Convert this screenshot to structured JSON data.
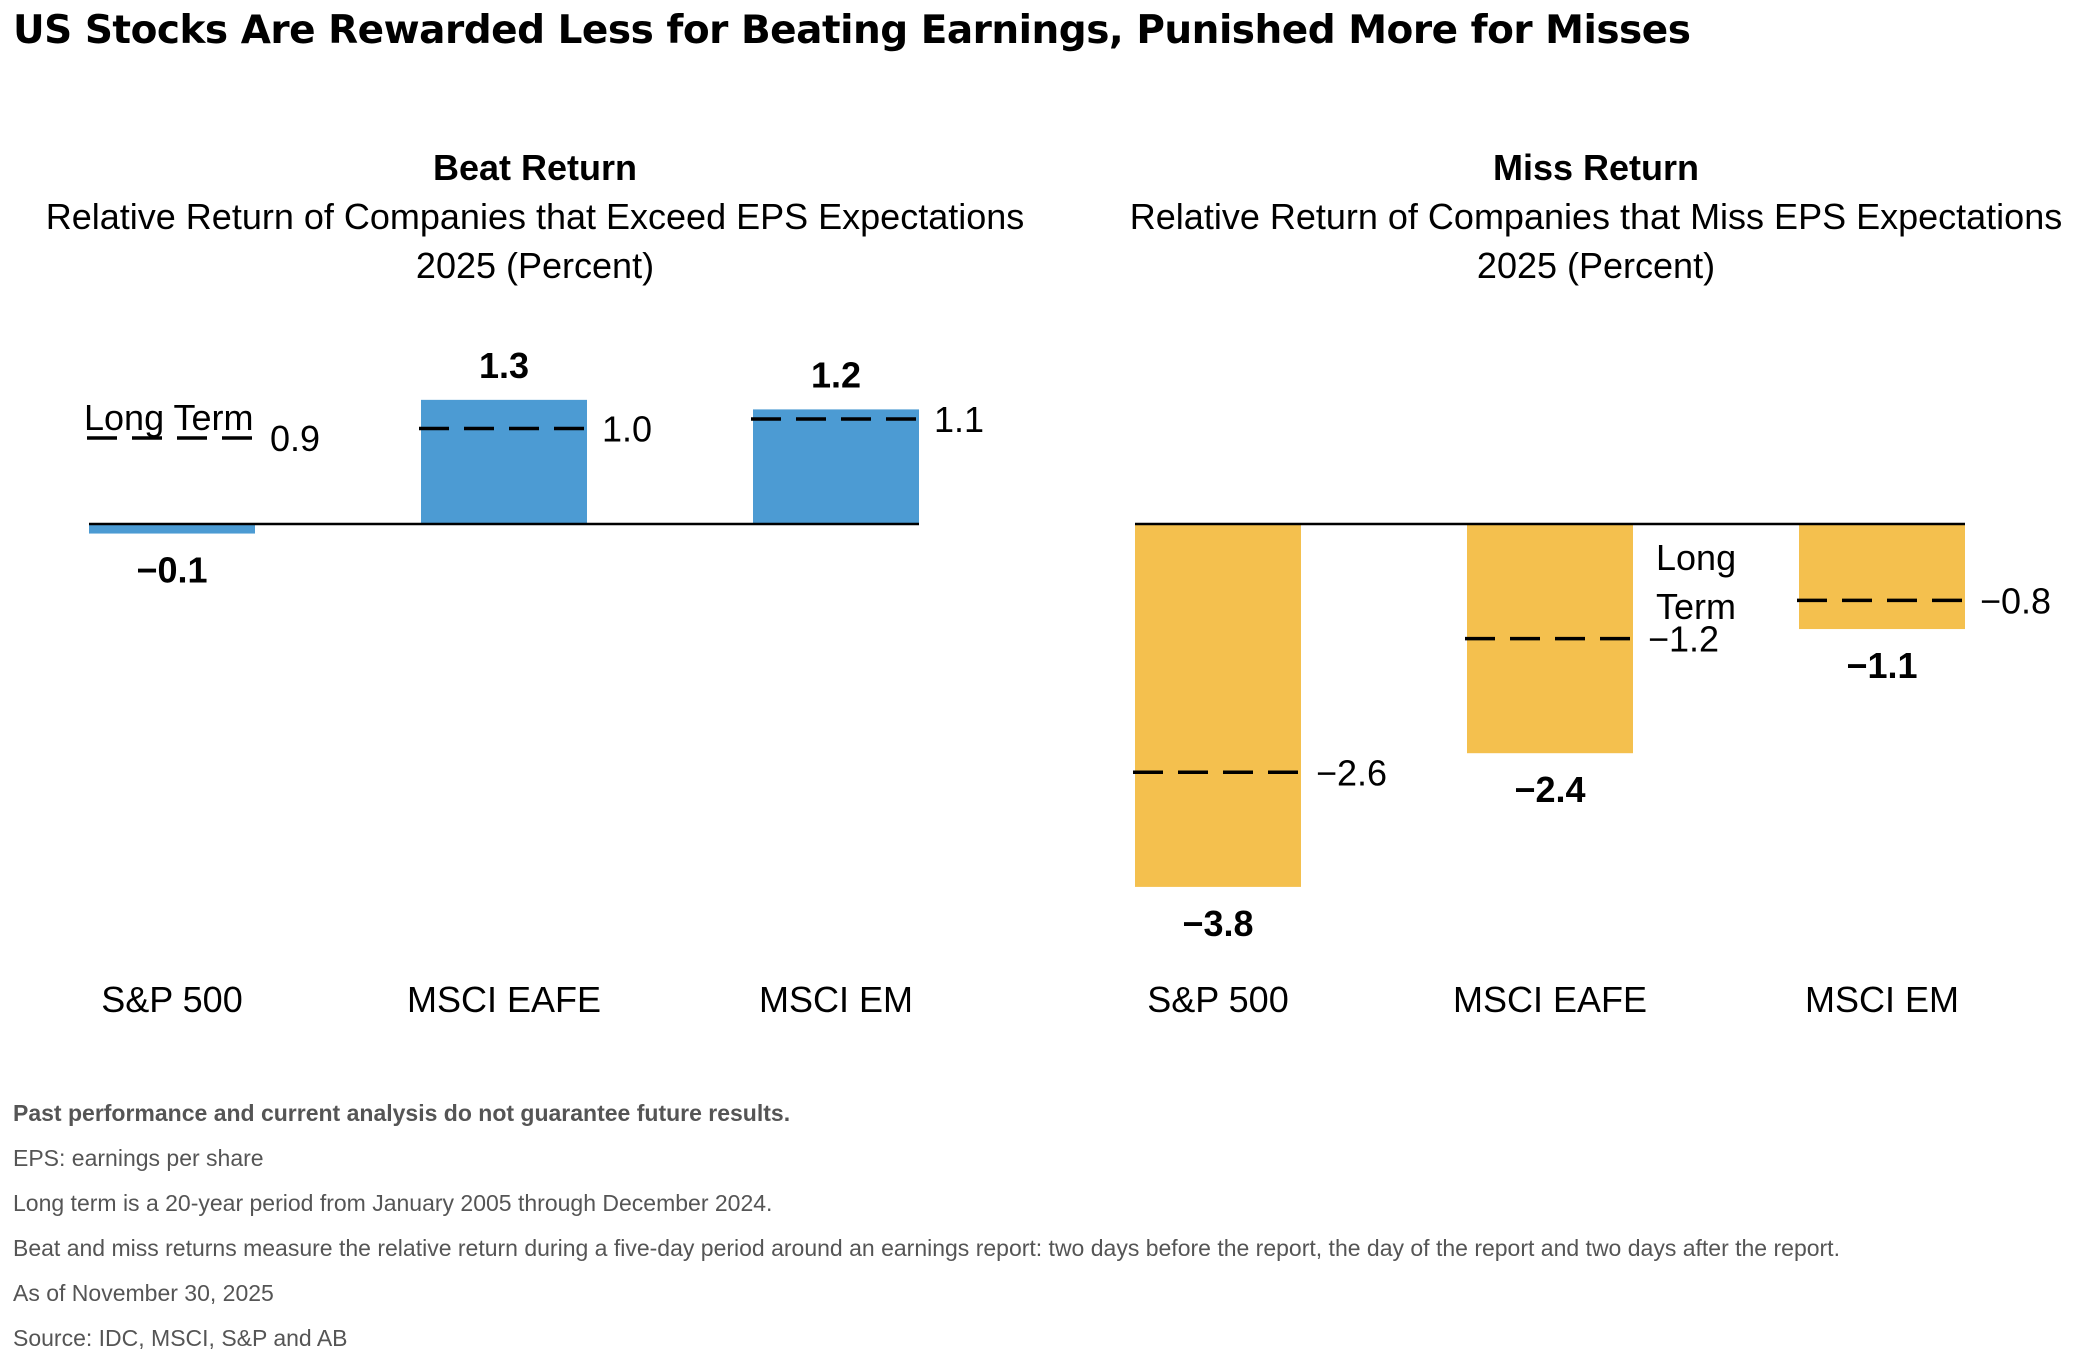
{
  "title": "US Stocks Are Rewarded Less for Beating Earnings, Punished More for Misses",
  "colors": {
    "beat": "#4C9BD3",
    "miss": "#F4C04E",
    "axis": "#000000",
    "note_text": "#555555"
  },
  "chart_data": [
    {
      "type": "bar",
      "title": "Beat Return",
      "subtitle": "Relative Return of Companies that Exceed EPS Expectations",
      "subtitle2": "2025 (Percent)",
      "categories": [
        "S&P 500",
        "MSCI EAFE",
        "MSCI EM"
      ],
      "values": [
        -0.1,
        1.3,
        1.2
      ],
      "value_labels": [
        "−0.1",
        "1.3",
        "1.2"
      ],
      "long_term": [
        0.9,
        1.0,
        1.1
      ],
      "long_term_labels": [
        "0.9",
        "1.0",
        "1.1"
      ],
      "long_term_legend": [
        "Long Term"
      ],
      "color": "#4C9BD3"
    },
    {
      "type": "bar",
      "title": "Miss Return",
      "subtitle": "Relative Return of Companies that Miss EPS Expectations",
      "subtitle2": "2025 (Percent)",
      "categories": [
        "S&P 500",
        "MSCI EAFE",
        "MSCI EM"
      ],
      "values": [
        -3.8,
        -2.4,
        -1.1
      ],
      "value_labels": [
        "−3.8",
        "−2.4",
        "−1.1"
      ],
      "long_term": [
        -2.6,
        -1.2,
        -0.8
      ],
      "long_term_labels": [
        "−2.6",
        "−1.2",
        "−0.8"
      ],
      "long_term_legend": [
        "Long",
        "Term"
      ],
      "color": "#F4C04E"
    }
  ],
  "notes": [
    "Past performance and current analysis do not guarantee future results.",
    "EPS: earnings per share",
    "Long term is a 20-year period from January 2005 through December 2024.",
    "Beat and miss returns measure the relative return during a five-day period around an earnings report: two days before the report, the day of the report and two days after the report.",
    "As of November 30, 2025",
    "Source: IDC, MSCI, S&P and AB"
  ]
}
